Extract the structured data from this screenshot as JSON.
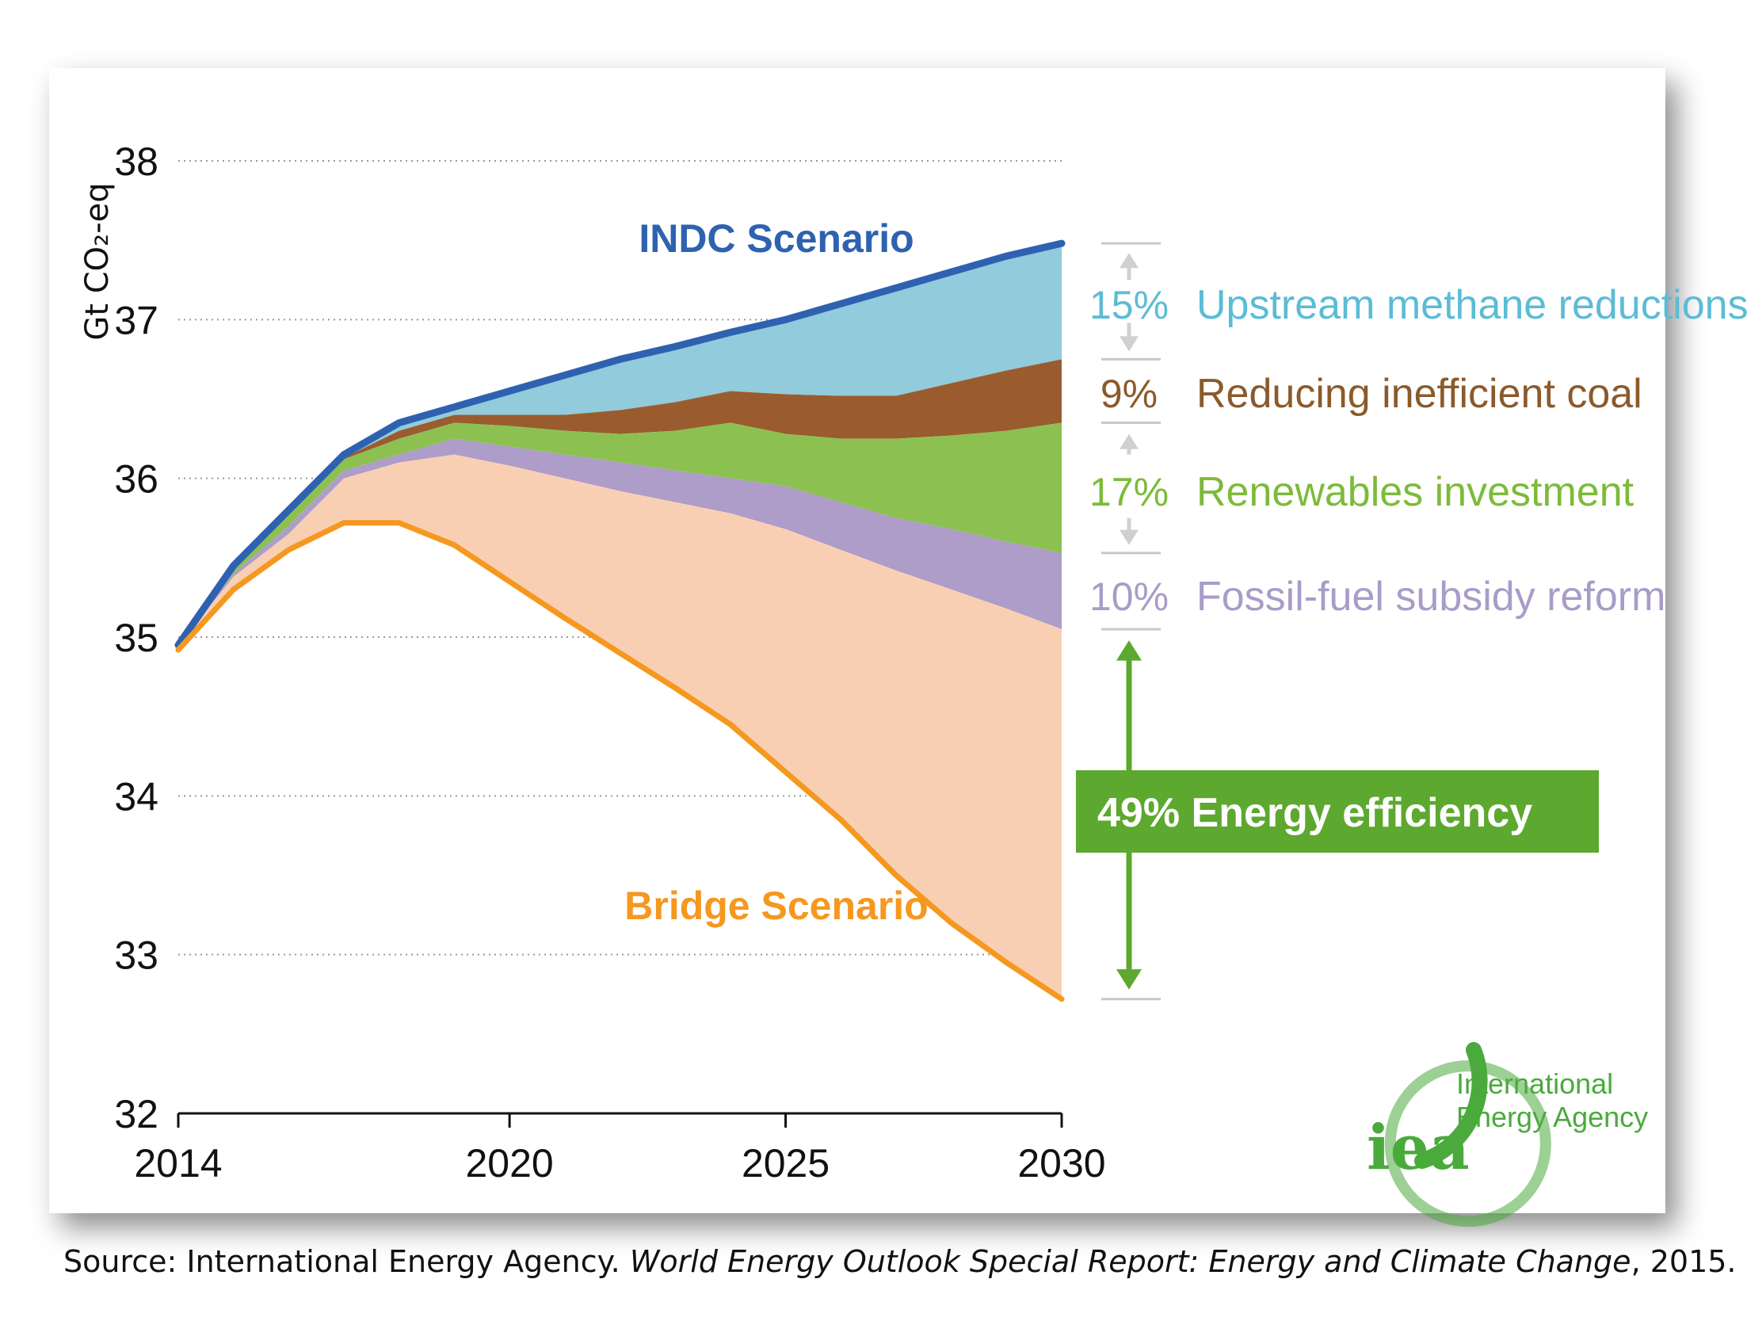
{
  "chart_data": {
    "type": "area",
    "title": "",
    "xlabel": "",
    "ylabel": "Gt CO₂-eq",
    "xlim": [
      2014,
      2030
    ],
    "ylim": [
      32,
      38
    ],
    "x_ticks": [
      2014,
      2020,
      2025,
      2030
    ],
    "y_ticks": [
      32,
      33,
      34,
      35,
      36,
      37,
      38
    ],
    "grid": true,
    "x": [
      2014,
      2015,
      2016,
      2017,
      2018,
      2019,
      2020,
      2021,
      2022,
      2023,
      2024,
      2025,
      2026,
      2027,
      2028,
      2029,
      2030
    ],
    "series": [
      {
        "name": "INDC Scenario",
        "color": "#2e62b0",
        "values": [
          34.95,
          35.45,
          35.8,
          36.15,
          36.35,
          36.45,
          36.55,
          36.65,
          36.75,
          36.83,
          36.92,
          37.0,
          37.1,
          37.2,
          37.3,
          37.4,
          37.48
        ]
      },
      {
        "name": "Upstream methane reductions",
        "color": "#91cbdc",
        "values": [
          34.95,
          35.45,
          35.8,
          36.13,
          36.3,
          36.4,
          36.4,
          36.4,
          36.43,
          36.48,
          36.55,
          36.53,
          36.52,
          36.52,
          36.6,
          36.68,
          36.75
        ]
      },
      {
        "name": "Reducing inefficient coal",
        "color": "#9a5c2e",
        "values": [
          34.95,
          35.45,
          35.8,
          36.12,
          36.25,
          36.35,
          36.33,
          36.3,
          36.28,
          36.3,
          36.35,
          36.28,
          36.25,
          36.25,
          36.27,
          36.3,
          36.35
        ]
      },
      {
        "name": "Renewables investment",
        "color": "#8cc152",
        "values": [
          34.95,
          35.4,
          35.7,
          36.05,
          36.15,
          36.25,
          36.2,
          36.15,
          36.1,
          36.05,
          36.0,
          35.95,
          35.85,
          35.75,
          35.68,
          35.6,
          35.53
        ]
      },
      {
        "name": "Fossil-fuel subsidy reform",
        "color": "#ae9cc9",
        "values": [
          34.95,
          35.38,
          35.65,
          36.0,
          36.1,
          36.15,
          36.08,
          36.0,
          35.92,
          35.85,
          35.78,
          35.68,
          35.55,
          35.42,
          35.3,
          35.18,
          35.05
        ]
      },
      {
        "name": "Bridge Scenario",
        "color": "#f5981f",
        "values": [
          34.92,
          35.3,
          35.55,
          35.72,
          35.72,
          35.58,
          35.35,
          35.12,
          34.9,
          34.68,
          34.45,
          34.15,
          33.85,
          33.5,
          33.2,
          32.95,
          32.72
        ]
      }
    ],
    "bridge_area_color": "#f9cfb4",
    "annotations": [
      {
        "pct": "15%",
        "label": "Upstream methane reductions",
        "color": "#5bbcd6"
      },
      {
        "pct": "9%",
        "label": "Reducing inefficient coal",
        "color": "#8b5a2b"
      },
      {
        "pct": "17%",
        "label": "Renewables investment",
        "color": "#7cbb3a"
      },
      {
        "pct": "10%",
        "label": "Fossil-fuel subsidy reform",
        "color": "#a89cc8"
      },
      {
        "pct": "49%",
        "label": "Energy efficiency",
        "color": "#5da82f"
      }
    ]
  },
  "logo": {
    "mark": "iea",
    "name_line1": "International",
    "name_line2": "Energy Agency",
    "color": "#4aaa3c"
  },
  "source": {
    "prefix": "Source: International Energy Agency. ",
    "title": "World Energy Outlook Special Report: Energy and Climate Change",
    "suffix": ", 2015."
  }
}
